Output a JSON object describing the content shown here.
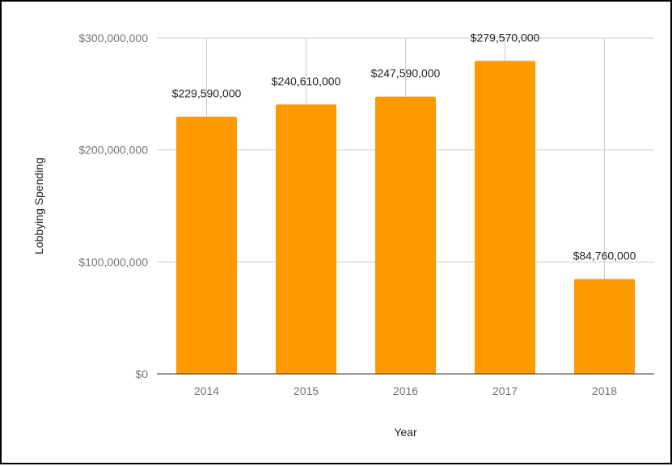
{
  "chart_data": {
    "type": "bar",
    "title": "",
    "xlabel": "Year",
    "ylabel": "Lobbying Spending",
    "categories": [
      "2014",
      "2015",
      "2016",
      "2017",
      "2018"
    ],
    "values": [
      229590000,
      240610000,
      247590000,
      279570000,
      84760000
    ],
    "data_labels": [
      "$229,590,000",
      "$240,610,000",
      "$247,590,000",
      "$279,570,000",
      "$84,760,000"
    ],
    "ylim": [
      0,
      300000000
    ],
    "yticks": [
      {
        "value": 0,
        "label": "$0"
      },
      {
        "value": 100000000,
        "label": "$100,000,000"
      },
      {
        "value": 200000000,
        "label": "$200,000,000"
      },
      {
        "value": 300000000,
        "label": "$300,000,000"
      }
    ],
    "grid": true,
    "bar_color": "#ff9900",
    "legend": "none"
  }
}
